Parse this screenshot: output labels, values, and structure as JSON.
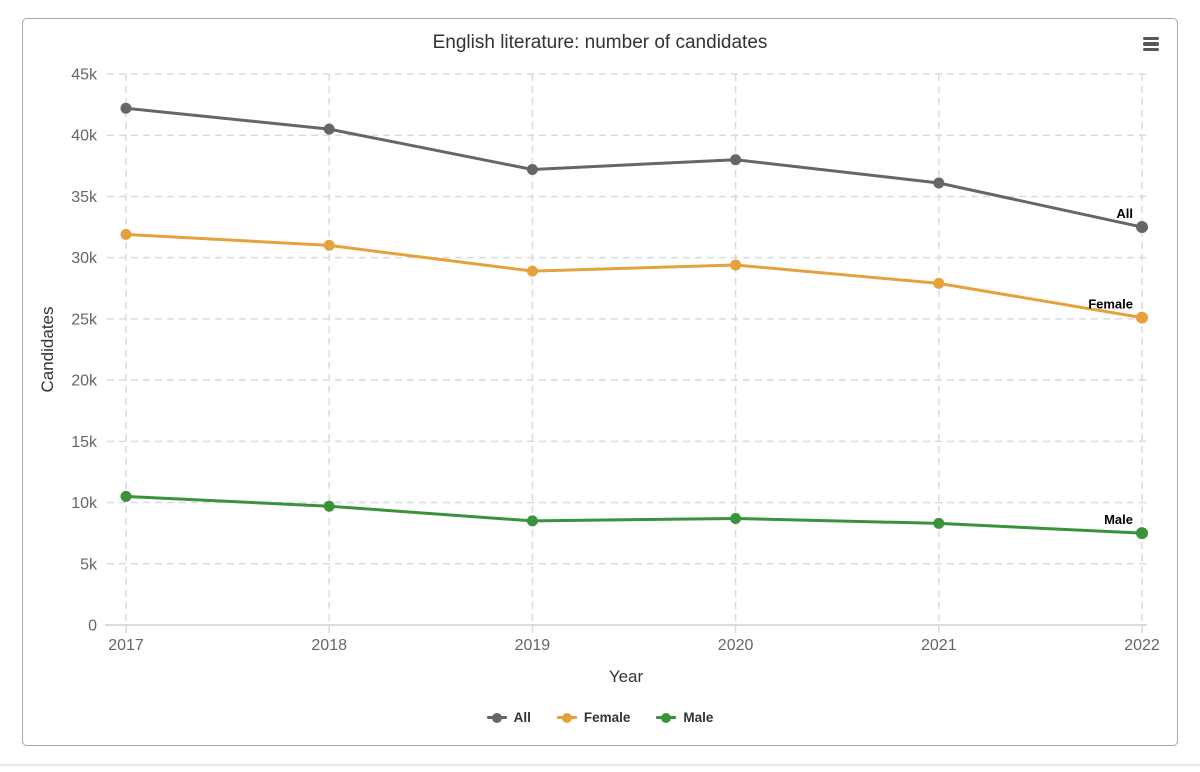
{
  "chart_data": {
    "type": "line",
    "title": "English literature: number of candidates",
    "xlabel": "Year",
    "ylabel": "Candidates",
    "categories": [
      "2017",
      "2018",
      "2019",
      "2020",
      "2021",
      "2022"
    ],
    "ylim": [
      0,
      45000
    ],
    "ytick_values": [
      0,
      5000,
      10000,
      15000,
      20000,
      25000,
      30000,
      35000,
      40000,
      45000
    ],
    "ytick_labels": [
      "0",
      "5k",
      "10k",
      "15k",
      "20k",
      "25k",
      "30k",
      "35k",
      "40k",
      "45k"
    ],
    "grid": "dashed-both-axes",
    "legend_position": "bottom-center",
    "series": [
      {
        "name": "All",
        "color": "#666666",
        "values": [
          42200,
          40500,
          37200,
          38000,
          36100,
          32500
        ]
      },
      {
        "name": "Female",
        "color": "#E5A23C",
        "values": [
          31900,
          31000,
          28900,
          29400,
          27900,
          25100
        ]
      },
      {
        "name": "Male",
        "color": "#3A923A",
        "values": [
          10500,
          9700,
          8500,
          8700,
          8300,
          7500
        ]
      }
    ]
  },
  "ui": {
    "menu_icon": "hamburger-menu-icon"
  },
  "colors": {
    "grid_line": "#d8dce2",
    "axis_line": "#ccd2da",
    "tick_text": "#666666",
    "axis_title_text": "#333333",
    "title_text": "#333333",
    "series_end_label": "#000000",
    "card_border": "#a7a7af",
    "divider": "#eaeaee"
  }
}
